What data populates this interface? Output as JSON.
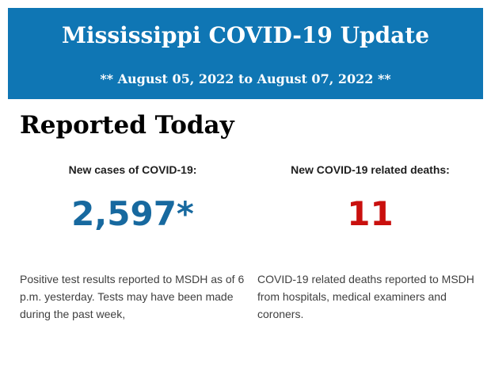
{
  "header": {
    "title": "Mississippi COVID-19 Update",
    "date_range": "** August 05, 2022 to August 07, 2022 **",
    "background_color": "#0f76b4",
    "text_color": "#ffffff"
  },
  "report": {
    "heading": "Reported Today",
    "cases": {
      "label": "New cases of COVID-19:",
      "value": "2,597*",
      "value_color": "#17699f",
      "description": "Positive test results reported to MSDH as of 6 p.m. yesterday. Tests may have been made during the past week,"
    },
    "deaths": {
      "label": "New COVID-19 related deaths:",
      "value": "11",
      "value_color": "#c9100e",
      "description": "COVID-19 related deaths reported to MSDH from hospitals, medical examiners and coroners."
    }
  }
}
